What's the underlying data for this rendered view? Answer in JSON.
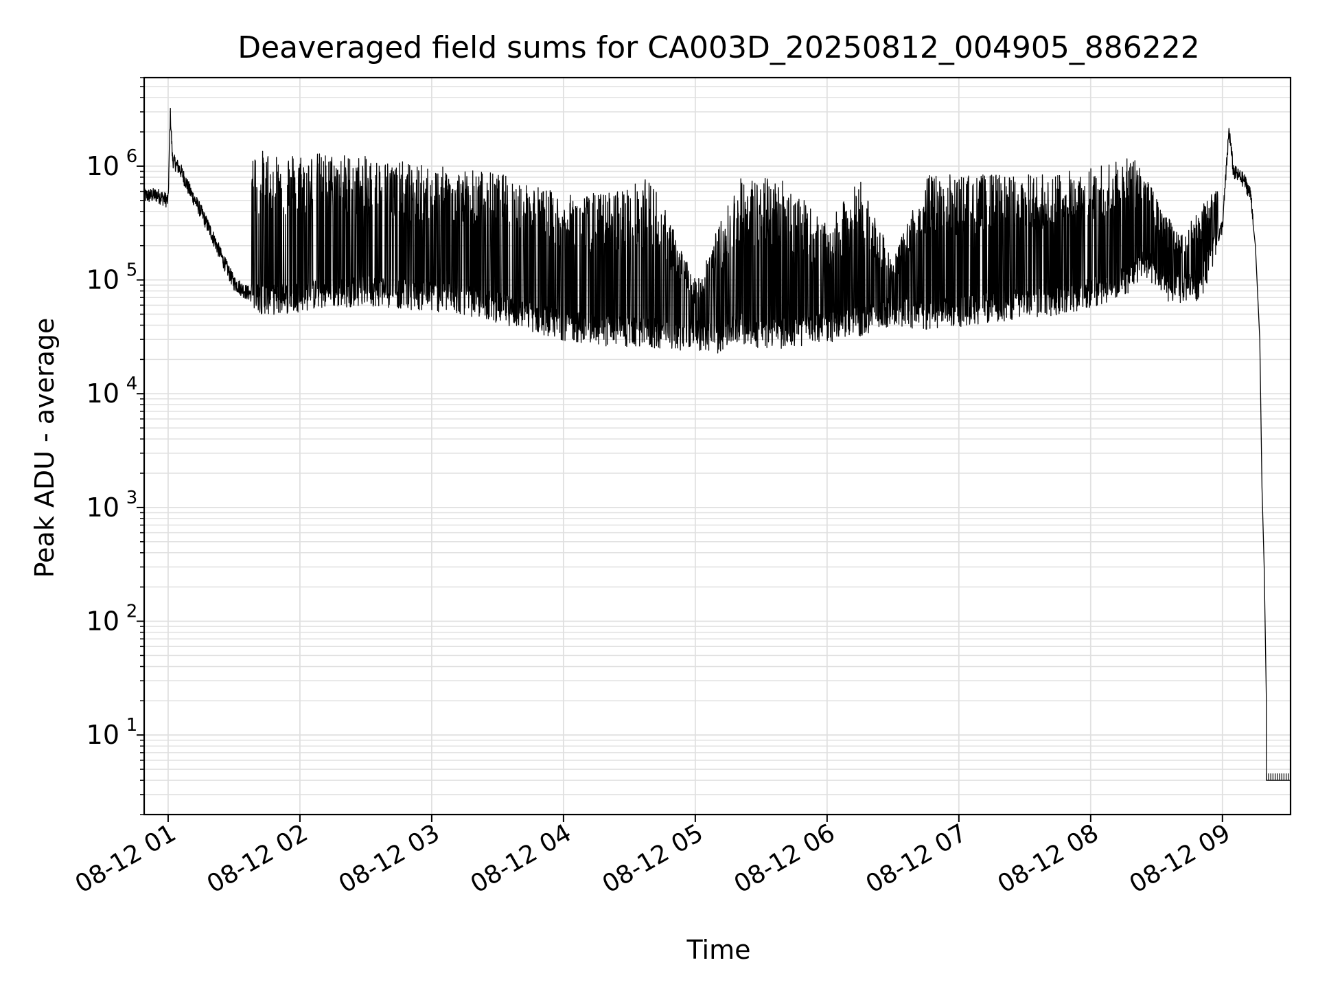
{
  "chart_data": {
    "type": "line",
    "title": "Deaveraged field sums for CA003D_20250812_004905_886222",
    "xlabel": "Time",
    "ylabel": "Peak ADU - average",
    "xscale": "time",
    "yscale": "log",
    "xlim": [
      "2025-08-12 00:49:05",
      "2025-08-12 09:31:00"
    ],
    "ylim": [
      2,
      6000000
    ],
    "x_ticks": [
      {
        "t": "2025-08-12 01:00",
        "label": "08-12 01"
      },
      {
        "t": "2025-08-12 02:00",
        "label": "08-12 02"
      },
      {
        "t": "2025-08-12 03:00",
        "label": "08-12 03"
      },
      {
        "t": "2025-08-12 04:00",
        "label": "08-12 04"
      },
      {
        "t": "2025-08-12 05:00",
        "label": "08-12 05"
      },
      {
        "t": "2025-08-12 06:00",
        "label": "08-12 06"
      },
      {
        "t": "2025-08-12 07:00",
        "label": "08-12 07"
      },
      {
        "t": "2025-08-12 08:00",
        "label": "08-12 08"
      },
      {
        "t": "2025-08-12 09:00",
        "label": "08-12 09"
      }
    ],
    "y_ticks": [
      {
        "value": 10,
        "base": "10",
        "exp": "1"
      },
      {
        "value": 100,
        "base": "10",
        "exp": "2"
      },
      {
        "value": 1000,
        "base": "10",
        "exp": "3"
      },
      {
        "value": 10000,
        "base": "10",
        "exp": "4"
      },
      {
        "value": 100000,
        "base": "10",
        "exp": "5"
      },
      {
        "value": 1000000,
        "base": "10",
        "exp": "6"
      }
    ],
    "grid": true,
    "line_color": "#000000",
    "grid_color": "#e0e0e0",
    "series": [
      {
        "points": [
          [
            "2025-08-12 00:49",
            550000
          ],
          [
            "2025-08-12 00:55",
            560000
          ],
          [
            "2025-08-12 01:00",
            500000
          ],
          [
            "2025-08-12 01:01",
            2900000
          ],
          [
            "2025-08-12 01:02",
            1150000
          ],
          [
            "2025-08-12 01:06",
            900000
          ],
          [
            "2025-08-12 01:10",
            600000
          ],
          [
            "2025-08-12 01:15",
            400000
          ],
          [
            "2025-08-12 01:20",
            250000
          ],
          [
            "2025-08-12 01:25",
            150000
          ],
          [
            "2025-08-12 01:30",
            95000
          ],
          [
            "2025-08-12 01:35",
            80000
          ],
          [
            "2025-08-12 01:40",
            72000
          ],
          [
            "2025-08-12 01:50",
            70000
          ],
          [
            "2025-08-12 02:00",
            75000
          ],
          [
            "2025-08-12 02:15",
            80000
          ],
          [
            "2025-08-12 02:30",
            85000
          ],
          [
            "2025-08-12 02:45",
            80000
          ],
          [
            "2025-08-12 03:00",
            75000
          ],
          [
            "2025-08-12 03:15",
            70000
          ],
          [
            "2025-08-12 03:30",
            60000
          ],
          [
            "2025-08-12 03:45",
            50000
          ],
          [
            "2025-08-12 04:00",
            42000
          ],
          [
            "2025-08-12 04:15",
            38000
          ],
          [
            "2025-08-12 04:30",
            36000
          ],
          [
            "2025-08-12 04:45",
            35000
          ],
          [
            "2025-08-12 05:00",
            34000
          ],
          [
            "2025-08-12 05:10",
            32000
          ],
          [
            "2025-08-12 05:20",
            40000
          ],
          [
            "2025-08-12 05:30",
            35000
          ],
          [
            "2025-08-12 05:45",
            36000
          ],
          [
            "2025-08-12 06:00",
            40000
          ],
          [
            "2025-08-12 06:15",
            45000
          ],
          [
            "2025-08-12 06:30",
            55000
          ],
          [
            "2025-08-12 06:45",
            50000
          ],
          [
            "2025-08-12 07:00",
            55000
          ],
          [
            "2025-08-12 07:15",
            60000
          ],
          [
            "2025-08-12 07:30",
            65000
          ],
          [
            "2025-08-12 07:45",
            70000
          ],
          [
            "2025-08-12 08:00",
            80000
          ],
          [
            "2025-08-12 08:15",
            100000
          ],
          [
            "2025-08-12 08:25",
            150000
          ],
          [
            "2025-08-12 08:35",
            85000
          ],
          [
            "2025-08-12 08:50",
            95000
          ],
          [
            "2025-08-12 09:00",
            300000
          ],
          [
            "2025-08-12 09:03",
            2100000
          ],
          [
            "2025-08-12 09:05",
            900000
          ],
          [
            "2025-08-12 09:10",
            750000
          ],
          [
            "2025-08-12 09:13",
            550000
          ],
          [
            "2025-08-12 09:15",
            200000
          ],
          [
            "2025-08-12 09:17",
            30000
          ],
          [
            "2025-08-12 09:18",
            1500
          ],
          [
            "2025-08-12 09:19",
            300
          ],
          [
            "2025-08-12 09:20",
            20
          ],
          [
            "2025-08-12 09:20",
            4
          ],
          [
            "2025-08-12 09:31",
            4
          ]
        ],
        "peaks": [
          [
            "2025-08-12 01:40",
            1400000
          ],
          [
            "2025-08-12 02:00",
            1350000
          ],
          [
            "2025-08-12 02:20",
            1300000
          ],
          [
            "2025-08-12 02:40",
            1150000
          ],
          [
            "2025-08-12 03:00",
            1000000
          ],
          [
            "2025-08-12 03:20",
            950000
          ],
          [
            "2025-08-12 03:40",
            800000
          ],
          [
            "2025-08-12 04:00",
            550000
          ],
          [
            "2025-08-12 04:20",
            600000
          ],
          [
            "2025-08-12 04:40",
            800000
          ],
          [
            "2025-08-12 05:00",
            100000
          ],
          [
            "2025-08-12 05:20",
            800000
          ],
          [
            "2025-08-12 05:40",
            800000
          ],
          [
            "2025-08-12 06:00",
            300000
          ],
          [
            "2025-08-12 06:15",
            800000
          ],
          [
            "2025-08-12 06:30",
            150000
          ],
          [
            "2025-08-12 06:45",
            850000
          ],
          [
            "2025-08-12 07:00",
            850000
          ],
          [
            "2025-08-12 07:20",
            850000
          ],
          [
            "2025-08-12 07:40",
            850000
          ],
          [
            "2025-08-12 08:00",
            1000000
          ],
          [
            "2025-08-12 08:20",
            1200000
          ],
          [
            "2025-08-12 08:40",
            250000
          ],
          [
            "2025-08-12 08:55",
            600000
          ]
        ]
      }
    ]
  }
}
